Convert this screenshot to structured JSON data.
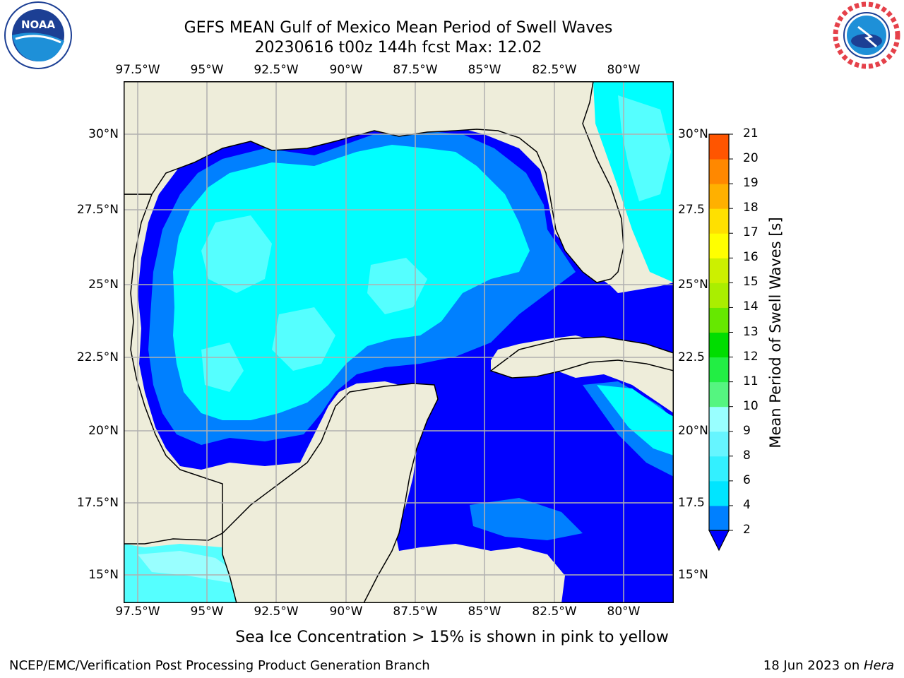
{
  "title": "GEFS MEAN Gulf of Mexico Mean Period of Swell Waves",
  "subtitle": "20230616 t00z 144h fcst   Max: 12.02",
  "longitude_labels": [
    "97.5°W",
    "95°W",
    "92.5°W",
    "90°W",
    "87.5°W",
    "85°W",
    "82.5°W",
    "80°W"
  ],
  "latitude_labels": [
    "30°N",
    "27.5°N",
    "25°N",
    "22.5°N",
    "20°N",
    "17.5°N",
    "15°N"
  ],
  "latitude_labels_right": [
    "30°N",
    "27.5",
    "25°N",
    "22.5",
    "20°N",
    "17.5",
    "15°N"
  ],
  "colorbar": {
    "title": "Mean Period of Swell Waves [s]",
    "ticks": [
      "2",
      "4",
      "6",
      "8",
      "9",
      "10",
      "11",
      "12",
      "13",
      "14",
      "15",
      "16",
      "17",
      "18",
      "19",
      "20",
      "21"
    ],
    "colors": [
      "#0080ff",
      "#00e5ff",
      "#33f0ff",
      "#66f5ff",
      "#99ffff",
      "#55f580",
      "#22ee44",
      "#00dd00",
      "#66e800",
      "#aaee00",
      "#ccf000",
      "#ffff00",
      "#ffe000",
      "#ffb000",
      "#ff8800",
      "#ff5500",
      "#ff2200",
      "#ff0000"
    ],
    "extend_color": "#0000ff"
  },
  "map_colors": {
    "land": "#eeedda",
    "period_2_4": "#0000ff",
    "period_4_6": "#0080ff",
    "period_6_8": "#00ffff",
    "period_8_9": "#55ffff"
  },
  "logos": {
    "left": "NOAA",
    "right": "NATIONAL WEATHER SERVICE"
  },
  "footnote": "Sea Ice Concentration > 15% is shown in pink to yellow",
  "footer_left": "NCEP/EMC/Verification Post Processing Product Generation Branch",
  "footer_date": "18 Jun 2023 on ",
  "footer_machine": "Hera"
}
